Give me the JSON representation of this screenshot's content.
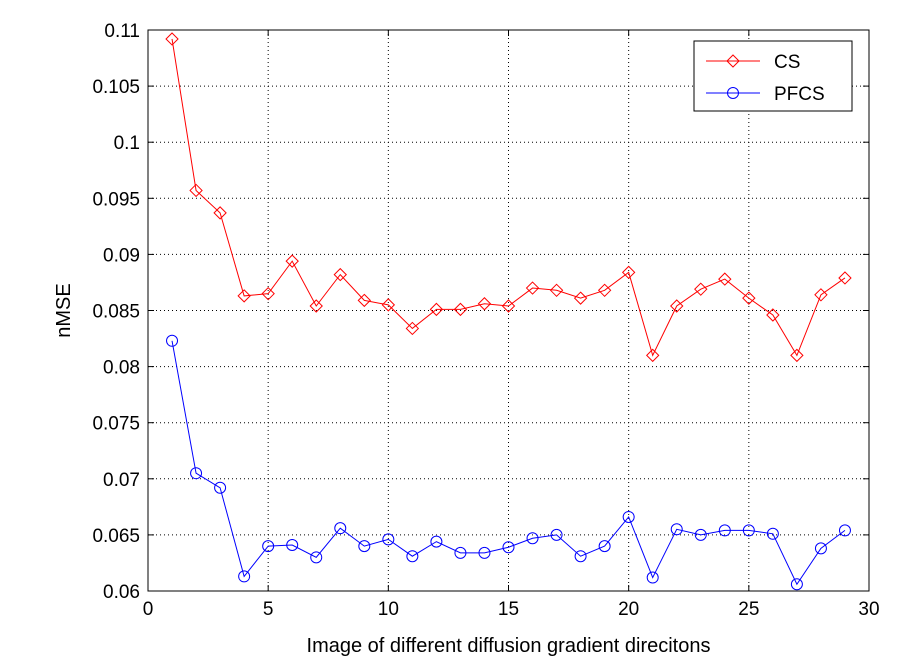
{
  "chart_data": {
    "type": "line",
    "title": "",
    "xlabel": "Image of different diffusion gradient direcitons",
    "ylabel": "nMSE",
    "xlim": [
      0,
      30
    ],
    "ylim": [
      0.06,
      0.11
    ],
    "xticks": [
      0,
      5,
      10,
      15,
      20,
      25,
      30
    ],
    "yticks": [
      0.06,
      0.065,
      0.07,
      0.075,
      0.08,
      0.085,
      0.09,
      0.095,
      0.1,
      0.105,
      0.11
    ],
    "xtick_labels": [
      "0",
      "5",
      "10",
      "15",
      "20",
      "25",
      "30"
    ],
    "ytick_labels": [
      "0.06",
      "0.065",
      "0.07",
      "0.075",
      "0.08",
      "0.085",
      "0.09",
      "0.095",
      "0.1",
      "0.105",
      "0.11"
    ],
    "grid": true,
    "legend_position": "top-right",
    "x": [
      1,
      2,
      3,
      4,
      5,
      6,
      7,
      8,
      9,
      10,
      11,
      12,
      13,
      14,
      15,
      16,
      17,
      18,
      19,
      20,
      21,
      22,
      23,
      24,
      25,
      26,
      27,
      28,
      29
    ],
    "series": [
      {
        "name": "CS",
        "color": "#ff0000",
        "marker": "diamond",
        "values": [
          0.1092,
          0.0957,
          0.0937,
          0.0863,
          0.0865,
          0.0894,
          0.0854,
          0.0882,
          0.0859,
          0.0855,
          0.0834,
          0.0851,
          0.0851,
          0.0856,
          0.0854,
          0.087,
          0.0868,
          0.0861,
          0.0868,
          0.0884,
          0.081,
          0.0854,
          0.0869,
          0.0878,
          0.0861,
          0.0846,
          0.081,
          0.0864,
          0.0879
        ]
      },
      {
        "name": "PFCS",
        "color": "#0000ff",
        "marker": "circle",
        "values": [
          0.0823,
          0.0705,
          0.0692,
          0.0613,
          0.064,
          0.0641,
          0.063,
          0.0656,
          0.064,
          0.0646,
          0.0631,
          0.0644,
          0.0634,
          0.0634,
          0.0639,
          0.0647,
          0.065,
          0.0631,
          0.064,
          0.0666,
          0.0612,
          0.0655,
          0.065,
          0.0654,
          0.0654,
          0.0651,
          0.0606,
          0.0638,
          0.0654
        ]
      }
    ]
  }
}
